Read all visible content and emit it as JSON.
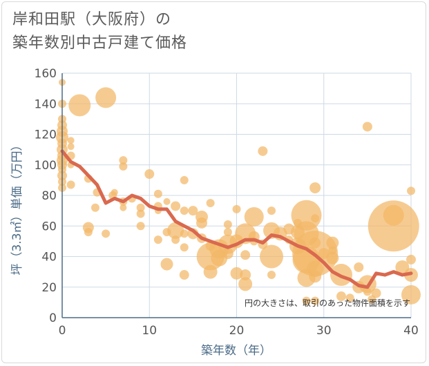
{
  "chart_data": {
    "type": "scatter",
    "title_lines": [
      "岸和田駅（大阪府）の",
      "築年数別中古戸建て価格"
    ],
    "xlabel": "築年数（年）",
    "ylabel": "坪（3.3㎡）単価（万円）",
    "xlim": [
      0,
      40
    ],
    "ylim": [
      0,
      160
    ],
    "xticks": [
      "0",
      "10",
      "20",
      "30",
      "40"
    ],
    "yticks": [
      "0",
      "20",
      "40",
      "60",
      "80",
      "100",
      "120",
      "140",
      "160"
    ],
    "note": "円の大きさは、取引のあった物件面積を示す",
    "grid": true,
    "colors": {
      "bubble": "#f2b766",
      "line": "#d9694f",
      "grid": "#cdd9e5",
      "axis": "#4a6a86"
    },
    "trend_line": {
      "x": [
        0,
        1,
        2,
        3,
        4,
        5,
        6,
        7,
        8,
        9,
        10,
        11,
        12,
        13,
        14,
        15,
        16,
        17,
        18,
        19,
        20,
        21,
        22,
        23,
        24,
        25,
        26,
        27,
        28,
        29,
        30,
        31,
        32,
        33,
        34,
        35,
        36,
        37,
        38,
        39,
        40
      ],
      "y": [
        109,
        102,
        99,
        93,
        87,
        75,
        78,
        76,
        80,
        78,
        73,
        71,
        71,
        63,
        60,
        57,
        52,
        50,
        48,
        46,
        48,
        51,
        51,
        49,
        54,
        53,
        50,
        47,
        45,
        41,
        36,
        30,
        27,
        25,
        21,
        20,
        29,
        28,
        30,
        28,
        29
      ]
    },
    "points": [
      {
        "x": 0,
        "y": 154,
        "r": 5
      },
      {
        "x": 0,
        "y": 140,
        "r": 6
      },
      {
        "x": 0,
        "y": 130,
        "r": 6
      },
      {
        "x": 0,
        "y": 126,
        "r": 7
      },
      {
        "x": 0,
        "y": 122,
        "r": 8
      },
      {
        "x": 0,
        "y": 118,
        "r": 9
      },
      {
        "x": 0,
        "y": 114,
        "r": 7
      },
      {
        "x": 0,
        "y": 110,
        "r": 8
      },
      {
        "x": 0,
        "y": 106,
        "r": 7
      },
      {
        "x": 0,
        "y": 103,
        "r": 8
      },
      {
        "x": 0,
        "y": 100,
        "r": 7
      },
      {
        "x": 0,
        "y": 97,
        "r": 6
      },
      {
        "x": 0,
        "y": 93,
        "r": 7
      },
      {
        "x": 0,
        "y": 89,
        "r": 6
      },
      {
        "x": 0,
        "y": 85,
        "r": 6
      },
      {
        "x": 1,
        "y": 116,
        "r": 5
      },
      {
        "x": 1,
        "y": 112,
        "r": 5
      },
      {
        "x": 1,
        "y": 106,
        "r": 6
      },
      {
        "x": 1,
        "y": 100,
        "r": 5
      },
      {
        "x": 1,
        "y": 87,
        "r": 6
      },
      {
        "x": 2,
        "y": 139,
        "r": 16
      },
      {
        "x": 3,
        "y": 91,
        "r": 6
      },
      {
        "x": 3,
        "y": 59,
        "r": 8
      },
      {
        "x": 3,
        "y": 56,
        "r": 6
      },
      {
        "x": 3.8,
        "y": 72,
        "r": 6
      },
      {
        "x": 4,
        "y": 82,
        "r": 6
      },
      {
        "x": 5,
        "y": 144,
        "r": 15
      },
      {
        "x": 5,
        "y": 55,
        "r": 6
      },
      {
        "x": 5.8,
        "y": 80,
        "r": 6
      },
      {
        "x": 6,
        "y": 82,
        "r": 5
      },
      {
        "x": 7,
        "y": 103,
        "r": 6
      },
      {
        "x": 7,
        "y": 99,
        "r": 6
      },
      {
        "x": 7,
        "y": 76,
        "r": 6
      },
      {
        "x": 7,
        "y": 72,
        "r": 5
      },
      {
        "x": 8,
        "y": 78,
        "r": 6
      },
      {
        "x": 9,
        "y": 72,
        "r": 6
      },
      {
        "x": 9,
        "y": 68,
        "r": 6
      },
      {
        "x": 9,
        "y": 60,
        "r": 6
      },
      {
        "x": 10,
        "y": 94,
        "r": 7
      },
      {
        "x": 11,
        "y": 81,
        "r": 6
      },
      {
        "x": 11,
        "y": 73,
        "r": 6
      },
      {
        "x": 11,
        "y": 70,
        "r": 5
      },
      {
        "x": 11,
        "y": 51,
        "r": 6
      },
      {
        "x": 12,
        "y": 76,
        "r": 5
      },
      {
        "x": 12,
        "y": 56,
        "r": 6
      },
      {
        "x": 12,
        "y": 35,
        "r": 9
      },
      {
        "x": 13,
        "y": 73,
        "r": 7
      },
      {
        "x": 13,
        "y": 57,
        "r": 12
      },
      {
        "x": 13,
        "y": 51,
        "r": 6
      },
      {
        "x": 14,
        "y": 90,
        "r": 6
      },
      {
        "x": 14,
        "y": 70,
        "r": 6
      },
      {
        "x": 14,
        "y": 55,
        "r": 6
      },
      {
        "x": 14,
        "y": 46,
        "r": 6
      },
      {
        "x": 14,
        "y": 28,
        "r": 7
      },
      {
        "x": 15,
        "y": 70,
        "r": 7
      },
      {
        "x": 15,
        "y": 55,
        "r": 8
      },
      {
        "x": 16,
        "y": 66,
        "r": 9
      },
      {
        "x": 16,
        "y": 62,
        "r": 8
      },
      {
        "x": 16,
        "y": 52,
        "r": 7
      },
      {
        "x": 17,
        "y": 75,
        "r": 6
      },
      {
        "x": 17,
        "y": 47,
        "r": 7
      },
      {
        "x": 17,
        "y": 40,
        "r": 20
      },
      {
        "x": 17,
        "y": 30,
        "r": 10
      },
      {
        "x": 18,
        "y": 45,
        "r": 14
      },
      {
        "x": 18,
        "y": 39,
        "r": 12
      },
      {
        "x": 19,
        "y": 61,
        "r": 6
      },
      {
        "x": 19,
        "y": 56,
        "r": 6
      },
      {
        "x": 19,
        "y": 48,
        "r": 14
      },
      {
        "x": 19,
        "y": 42,
        "r": 8
      },
      {
        "x": 20,
        "y": 71,
        "r": 6
      },
      {
        "x": 20,
        "y": 50,
        "r": 10
      },
      {
        "x": 20,
        "y": 29,
        "r": 9
      },
      {
        "x": 21,
        "y": 41,
        "r": 7
      },
      {
        "x": 21,
        "y": 28,
        "r": 8
      },
      {
        "x": 21,
        "y": 22,
        "r": 10
      },
      {
        "x": 21,
        "y": 55,
        "r": 15
      },
      {
        "x": 22,
        "y": 66,
        "r": 14
      },
      {
        "x": 22,
        "y": 53,
        "r": 8
      },
      {
        "x": 22,
        "y": 50,
        "r": 6
      },
      {
        "x": 23,
        "y": 109,
        "r": 7
      },
      {
        "x": 23,
        "y": 48,
        "r": 7
      },
      {
        "x": 24,
        "y": 70,
        "r": 6
      },
      {
        "x": 24,
        "y": 57,
        "r": 12
      },
      {
        "x": 24,
        "y": 40,
        "r": 17
      },
      {
        "x": 24,
        "y": 28,
        "r": 6
      },
      {
        "x": 25,
        "y": 55,
        "r": 10
      },
      {
        "x": 26,
        "y": 58,
        "r": 8
      },
      {
        "x": 26,
        "y": 51,
        "r": 6
      },
      {
        "x": 27,
        "y": 62,
        "r": 6
      },
      {
        "x": 27,
        "y": 56,
        "r": 10
      },
      {
        "x": 27,
        "y": 47,
        "r": 12
      },
      {
        "x": 28,
        "y": 67,
        "r": 22
      },
      {
        "x": 28,
        "y": 55,
        "r": 18
      },
      {
        "x": 28,
        "y": 38,
        "r": 20
      },
      {
        "x": 28,
        "y": 26,
        "r": 13
      },
      {
        "x": 28,
        "y": 11,
        "r": 6
      },
      {
        "x": 29,
        "y": 85,
        "r": 8
      },
      {
        "x": 29,
        "y": 65,
        "r": 6
      },
      {
        "x": 29,
        "y": 49,
        "r": 8
      },
      {
        "x": 29,
        "y": 42,
        "r": 33
      },
      {
        "x": 29,
        "y": 32,
        "r": 12
      },
      {
        "x": 29,
        "y": 27,
        "r": 9
      },
      {
        "x": 29,
        "y": 11,
        "r": 6
      },
      {
        "x": 30,
        "y": 42,
        "r": 8
      },
      {
        "x": 31,
        "y": 49,
        "r": 9
      },
      {
        "x": 31,
        "y": 44,
        "r": 6
      },
      {
        "x": 31,
        "y": 39,
        "r": 9
      },
      {
        "x": 32,
        "y": 28,
        "r": 16
      },
      {
        "x": 32,
        "y": 14,
        "r": 7
      },
      {
        "x": 33,
        "y": 13,
        "r": 6
      },
      {
        "x": 34,
        "y": 33,
        "r": 7
      },
      {
        "x": 34,
        "y": 20,
        "r": 9
      },
      {
        "x": 35,
        "y": 125,
        "r": 7
      },
      {
        "x": 35,
        "y": 22,
        "r": 13
      },
      {
        "x": 35,
        "y": 17,
        "r": 6
      },
      {
        "x": 35.5,
        "y": 12,
        "r": 6
      },
      {
        "x": 36,
        "y": 16,
        "r": 7
      },
      {
        "x": 38,
        "y": 60,
        "r": 37
      },
      {
        "x": 38,
        "y": 67,
        "r": 15
      },
      {
        "x": 39,
        "y": 33,
        "r": 10
      },
      {
        "x": 40,
        "y": 83,
        "r": 6
      },
      {
        "x": 40,
        "y": 38,
        "r": 7
      },
      {
        "x": 40,
        "y": 28,
        "r": 10
      },
      {
        "x": 40,
        "y": 15,
        "r": 14
      }
    ]
  }
}
